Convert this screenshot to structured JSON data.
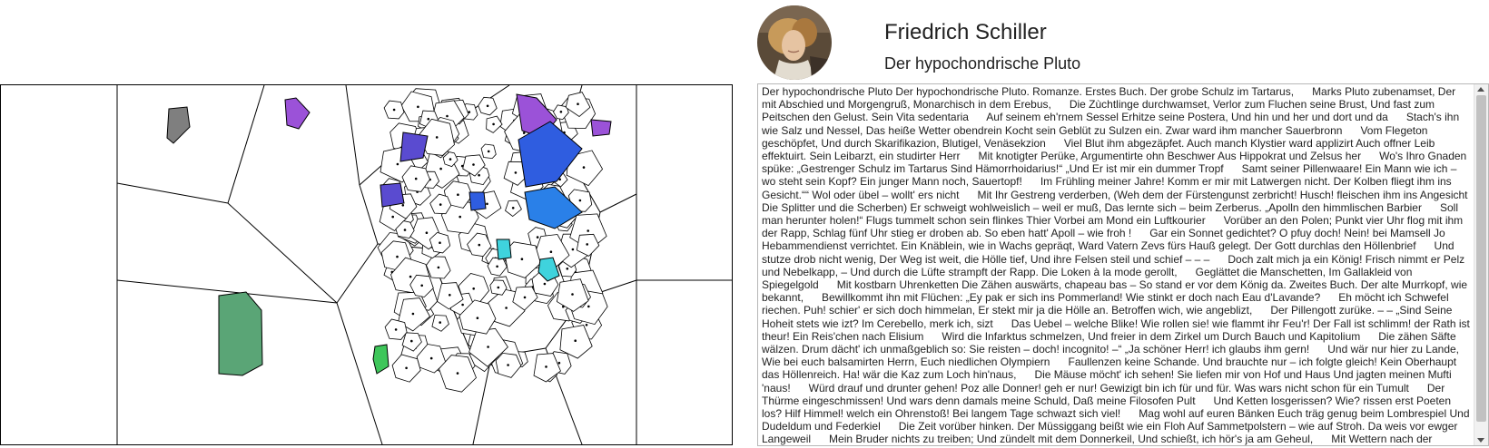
{
  "author": {
    "name": "Friedrich Schiller",
    "avatar_icon": "portrait-icon"
  },
  "work": {
    "title": "Der hypochondrische Pluto",
    "text": "Der hypochondrische Pluto Der hypochondrische Pluto. Romanze. Erstes Buch. Der grobe Schulz im Tartarus,      Marks Pluto zubenamset, Der mit Abschied und Morgengruß, Monarchisch in dem Erebus,      Die Zùchtlinge durchwamset, Verlor zum Fluchen seine Brust, Und fast zum Peitschen den Gelust. Sein Vita sedentaria      Auf seinem eh'rnem Sessel Erhitze seine Postera, Und hin und her und dort und da      Stach's ihn wie Salz und Nessel, Das heiße Wetter obendrein Kocht sein Geblüt zu Sulzen ein. Zwar ward ihm mancher Sauerbronn      Vom Flegeton geschöpfet, Und durch Skarifikazion, Blutigel, Venäsekzion      Viel Blut ihm abgezäpfet. Auch manch Klystier ward applizirt Auch offner Leib effektuirt. Sein Leibarzt, ein studirter Herr      Mit knotigter Perüke, Argumentirte ohn Beschwer Aus Hippokrat und Zelsus her      Wo's Ihro Gnaden spüke: „Gestrenger Schulz im Tartarus Sind Hämorrhoidarius!“ „Und Er ist mir ein dummer Tropf      Samt seiner Pillenwaare! Ein Mann wie ich – wo steht sein Kopf? Ein junger Mann noch, Sauertopf!      Im Frühling meiner Jahre! Komm er mir mit Latwergen nicht. Der Kolben fliegt ihm ins Gesicht.““ Wol oder übel – wollt' ers nicht      Mit Ihr Gestreng verderben, (Weh dem der Fürstengunst zerbricht! Husch! fleischen ihm ins Angesicht      Die Splitter und die Scherben) Er schweigt wohlweislich – weil er muß, Das lernte sich – beim Zerberus. „Apolln den himmlischen Barbier      Soll man herunter holen!“ Flugs tummelt schon sein flinkes Thier Vorbei am Mond ein Luftkourier      Vorüber an den Polen; Punkt vier Uhr flog mit ihm der Rapp, Schlag fünf Uhr stieg er droben ab. So eben hatt' Apoll – wie froh !      Gar ein Sonnet gedichtet? O pfuy doch! Nein! bei Mamsell Jo      Hebammendienst verrichtet. Ein Knäblein, wie in Wachs gepräqt, Ward Vatern Zevs fürs Hauß gelegt. Der Gott durchlas den Höllenbrief      Und stutze drob nicht wenig, Der Weg ist weit, die Hölle tief, Und ihre Felsen steil und schief – – –      Doch zalt mich ja ein König! Frisch nimmt er Pelz und Nebelkapp, – Und durch die Lüfte strampft der Rapp. Die Loken à la mode gerollt,      Geglättet die Manschetten, Im Gallakleid von Spiegelgold      Mit kostbarn Uhrenketten Die Zähen auswärts, chapeau bas – So stand er vor dem König da. Zweites Buch. Der alte Murrkopf, wie bekannt,      Bewillkommt ihn mit Flüchen: „Ey pak er sich ins Pommerland! Wie stinkt er doch nach Eau d'Lavande?      Eh möcht ich Schwefel riechen. Puh! schier' er sich doch himmelan, Er stekt mir ja die Hölle an. Betroffen wich, wie angeblizt,      Der Pillengott zurüke. – – „Sind Seine Hoheit stets wie izt? Im Cerebello, merk ich, sizt      Das Uebel – welche Blike! Wie rollen sie! wie flammt ihr Feu'r! Der Fall ist schlimm! der Rath ist theur! Ein Reis'chen nach Elisium      Wird die Infarktus schmelzen, Und freier in dem Zirkel um Durch Bauch und Kapitolium      Die zähen Säfte wälzen. Drum dächt' ich unmaßgeblich so: Sie reisten – doch! incognito! –“ „Ja schöner Herr! ich glaubs ihm gern!      Und wär nur hier zu Lande, Wie bei euch balsamirten Herrn, Euch niedlichen Olympiern      Faullenzen keine Schande. Und brauchte nur – ich folgte gleich! Kein Oberhaupt das Höllenreich. Ha! wär die Kaz zum Loch hin'naus,      Die Mäuse möcht' ich sehen! Sie liefen mir von Hof und Haus Und jagten meinen Mufti 'naus!      Würd drauf und drunter gehen! Poz alle Donner! geh er nur! Gewizigt bin ich für und für. Was wars nicht schon für ein Tumult      Der Thürme eingeschmissen! Und wars denn damals meine Schuld, Daß meine Filosofen Pult      Und Ketten losgerissen? Wie? rissen erst Poeten los? Hilf Himmel! welch ein Ohrenstoß! Bei langem Tage schwazt sich viel!      Mag wohl auf euren Bänken Euch träg genug beim Lombrespiel Und Dudeldum und Federkiel      Die Zeit vorüber hinken. Der Müssiggang beißt wie ein Floh Auf Sammetpolstern – wie auf Stroh. Da weis vor ewger Langeweil      Mein Bruder nichts zu treiben; Und zündelt mit dem Donnerkeil, Und schießt, ich hör's ja am Geheul,      Mit Wettern nach der Scheiben; Der Rhese arme Schulter schwankt, Und mir für meine Hölle bangt. Großvater Cälus sollt' ich sey'n!      Ich wollt mir Ruhe schaffen. Ihr"
  },
  "viz": {
    "outline_color": "#000000",
    "cell_fill": "#ffffff",
    "highlight_colors": {
      "grey": "#7f7f7f",
      "violet": "#9b52d8",
      "indigo": "#5a4bd0",
      "blue": "#2f5de0",
      "azure": "#2a80e8",
      "cyan": "#3fd3dd",
      "green": "#5aa576",
      "bright_green": "#3ec65a"
    }
  }
}
